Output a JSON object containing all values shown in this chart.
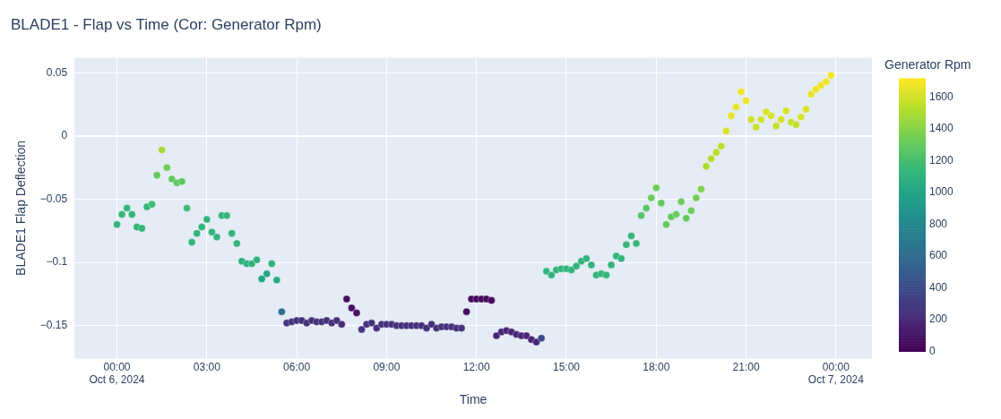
{
  "chart_data": {
    "type": "scatter",
    "title": "BLADE1 - Flap vs Time (Cor: Generator Rpm)",
    "xlabel": "Time",
    "ylabel": "BLADE1 Flap Deflection",
    "clabel": "Generator Rpm",
    "marker": "circle",
    "grid": true,
    "x": [
      "2024-10-06T00:00",
      "2024-10-06T00:10",
      "2024-10-06T00:20",
      "2024-10-06T00:30",
      "2024-10-06T00:40",
      "2024-10-06T00:50",
      "2024-10-06T01:00",
      "2024-10-06T01:10",
      "2024-10-06T01:20",
      "2024-10-06T01:30",
      "2024-10-06T01:40",
      "2024-10-06T01:50",
      "2024-10-06T02:00",
      "2024-10-06T02:10",
      "2024-10-06T02:20",
      "2024-10-06T02:30",
      "2024-10-06T02:40",
      "2024-10-06T02:50",
      "2024-10-06T03:00",
      "2024-10-06T03:10",
      "2024-10-06T03:20",
      "2024-10-06T03:30",
      "2024-10-06T03:40",
      "2024-10-06T03:50",
      "2024-10-06T04:00",
      "2024-10-06T04:10",
      "2024-10-06T04:20",
      "2024-10-06T04:30",
      "2024-10-06T04:40",
      "2024-10-06T04:50",
      "2024-10-06T05:00",
      "2024-10-06T05:10",
      "2024-10-06T05:20",
      "2024-10-06T05:30",
      "2024-10-06T05:40",
      "2024-10-06T05:50",
      "2024-10-06T06:00",
      "2024-10-06T06:10",
      "2024-10-06T06:20",
      "2024-10-06T06:30",
      "2024-10-06T06:40",
      "2024-10-06T06:50",
      "2024-10-06T07:00",
      "2024-10-06T07:10",
      "2024-10-06T07:20",
      "2024-10-06T07:30",
      "2024-10-06T07:40",
      "2024-10-06T07:50",
      "2024-10-06T08:00",
      "2024-10-06T08:10",
      "2024-10-06T08:20",
      "2024-10-06T08:30",
      "2024-10-06T08:40",
      "2024-10-06T08:50",
      "2024-10-06T09:00",
      "2024-10-06T09:10",
      "2024-10-06T09:20",
      "2024-10-06T09:30",
      "2024-10-06T09:40",
      "2024-10-06T09:50",
      "2024-10-06T10:00",
      "2024-10-06T10:10",
      "2024-10-06T10:20",
      "2024-10-06T10:30",
      "2024-10-06T10:40",
      "2024-10-06T10:50",
      "2024-10-06T11:00",
      "2024-10-06T11:10",
      "2024-10-06T11:20",
      "2024-10-06T11:30",
      "2024-10-06T11:40",
      "2024-10-06T11:50",
      "2024-10-06T12:00",
      "2024-10-06T12:10",
      "2024-10-06T12:20",
      "2024-10-06T12:30",
      "2024-10-06T12:40",
      "2024-10-06T12:50",
      "2024-10-06T13:00",
      "2024-10-06T13:10",
      "2024-10-06T13:20",
      "2024-10-06T13:30",
      "2024-10-06T13:40",
      "2024-10-06T13:50",
      "2024-10-06T14:00",
      "2024-10-06T14:10",
      "2024-10-06T14:20",
      "2024-10-06T14:30",
      "2024-10-06T14:40",
      "2024-10-06T14:50",
      "2024-10-06T15:00",
      "2024-10-06T15:10",
      "2024-10-06T15:20",
      "2024-10-06T15:30",
      "2024-10-06T15:40",
      "2024-10-06T15:50",
      "2024-10-06T16:00",
      "2024-10-06T16:10",
      "2024-10-06T16:20",
      "2024-10-06T16:30",
      "2024-10-06T16:40",
      "2024-10-06T16:50",
      "2024-10-06T17:00",
      "2024-10-06T17:10",
      "2024-10-06T17:20",
      "2024-10-06T17:30",
      "2024-10-06T17:40",
      "2024-10-06T17:50",
      "2024-10-06T18:00",
      "2024-10-06T18:10",
      "2024-10-06T18:20",
      "2024-10-06T18:30",
      "2024-10-06T18:40",
      "2024-10-06T18:50",
      "2024-10-06T19:00",
      "2024-10-06T19:10",
      "2024-10-06T19:20",
      "2024-10-06T19:30",
      "2024-10-06T19:40",
      "2024-10-06T19:50",
      "2024-10-06T20:00",
      "2024-10-06T20:10",
      "2024-10-06T20:20",
      "2024-10-06T20:30",
      "2024-10-06T20:40",
      "2024-10-06T20:50",
      "2024-10-06T21:00",
      "2024-10-06T21:10",
      "2024-10-06T21:20",
      "2024-10-06T21:30",
      "2024-10-06T21:40",
      "2024-10-06T21:50",
      "2024-10-06T22:00",
      "2024-10-06T22:10",
      "2024-10-06T22:20",
      "2024-10-06T22:30",
      "2024-10-06T22:40",
      "2024-10-06T22:50",
      "2024-10-06T23:00",
      "2024-10-06T23:10",
      "2024-10-06T23:20",
      "2024-10-06T23:30",
      "2024-10-06T23:40",
      "2024-10-06T23:50"
    ],
    "values": [
      -0.07,
      -0.062,
      -0.057,
      -0.062,
      -0.072,
      -0.073,
      -0.056,
      -0.054,
      -0.031,
      -0.011,
      -0.025,
      -0.034,
      -0.037,
      -0.036,
      -0.057,
      -0.084,
      -0.077,
      -0.072,
      -0.066,
      -0.076,
      -0.08,
      -0.063,
      -0.063,
      -0.077,
      -0.085,
      -0.099,
      -0.101,
      -0.101,
      -0.098,
      -0.113,
      -0.109,
      -0.101,
      -0.114,
      -0.139,
      -0.148,
      -0.147,
      -0.146,
      -0.146,
      -0.148,
      -0.146,
      -0.147,
      -0.147,
      -0.146,
      -0.148,
      -0.146,
      -0.149,
      -0.129,
      -0.136,
      -0.14,
      -0.153,
      -0.149,
      -0.148,
      -0.152,
      -0.149,
      -0.149,
      -0.149,
      -0.15,
      -0.15,
      -0.15,
      -0.15,
      -0.15,
      -0.15,
      -0.152,
      -0.149,
      -0.152,
      -0.151,
      -0.151,
      -0.151,
      -0.152,
      -0.152,
      -0.139,
      -0.129,
      -0.129,
      -0.129,
      -0.129,
      -0.13,
      -0.158,
      -0.155,
      -0.154,
      -0.155,
      -0.157,
      -0.158,
      -0.158,
      -0.161,
      -0.163,
      -0.16,
      -0.107,
      -0.11,
      -0.106,
      -0.105,
      -0.105,
      -0.106,
      -0.103,
      -0.099,
      -0.097,
      -0.102,
      -0.11,
      -0.109,
      -0.11,
      -0.102,
      -0.095,
      -0.097,
      -0.086,
      -0.079,
      -0.085,
      -0.063,
      -0.057,
      -0.049,
      -0.041,
      -0.053,
      -0.07,
      -0.064,
      -0.062,
      -0.052,
      -0.065,
      -0.059,
      -0.049,
      -0.042,
      -0.024,
      -0.018,
      -0.013,
      -0.008,
      0.004,
      0.016,
      0.023,
      0.035,
      0.028,
      0.013,
      0.007,
      0.013,
      0.019,
      0.016,
      0.008,
      0.013,
      0.02,
      0.011,
      0.009,
      0.015,
      0.021,
      0.033,
      0.037,
      0.04,
      0.043,
      0.048
    ],
    "cvalues": [
      1130,
      1150,
      1140,
      1140,
      1130,
      1130,
      1150,
      1170,
      1300,
      1480,
      1330,
      1300,
      1280,
      1280,
      1180,
      1120,
      1130,
      1130,
      1140,
      1120,
      1120,
      1140,
      1150,
      1120,
      1120,
      1100,
      1100,
      1100,
      1110,
      1000,
      1020,
      1100,
      1060,
      620,
      250,
      250,
      250,
      250,
      250,
      250,
      240,
      240,
      240,
      240,
      240,
      200,
      60,
      80,
      80,
      240,
      240,
      240,
      240,
      240,
      240,
      240,
      240,
      240,
      240,
      240,
      240,
      240,
      240,
      240,
      240,
      240,
      240,
      240,
      240,
      240,
      50,
      40,
      40,
      40,
      40,
      40,
      180,
      180,
      180,
      180,
      180,
      180,
      180,
      180,
      180,
      380,
      1120,
      1120,
      1120,
      1120,
      1120,
      1120,
      1120,
      1120,
      1120,
      1120,
      1120,
      1120,
      1120,
      1120,
      1120,
      1120,
      1150,
      1150,
      1150,
      1250,
      1260,
      1320,
      1340,
      1300,
      1300,
      1300,
      1320,
      1320,
      1300,
      1320,
      1350,
      1380,
      1500,
      1520,
      1530,
      1550,
      1620,
      1650,
      1660,
      1680,
      1670,
      1600,
      1580,
      1600,
      1620,
      1620,
      1570,
      1600,
      1620,
      1580,
      1570,
      1610,
      1630,
      1660,
      1670,
      1680,
      1680,
      1690
    ],
    "clim": [
      0,
      1720
    ],
    "cticks": [
      0,
      200,
      400,
      600,
      800,
      1000,
      1200,
      1400,
      1600
    ],
    "xlim": [
      "2024-10-05T22:35",
      "2024-10-07T01:12"
    ],
    "xticks": [
      {
        "value": "2024-10-06T00:00",
        "label": "00:00\nOct 6, 2024"
      },
      {
        "value": "2024-10-06T03:00",
        "label": "03:00"
      },
      {
        "value": "2024-10-06T06:00",
        "label": "06:00"
      },
      {
        "value": "2024-10-06T09:00",
        "label": "09:00"
      },
      {
        "value": "2024-10-06T12:00",
        "label": "12:00"
      },
      {
        "value": "2024-10-06T15:00",
        "label": "15:00"
      },
      {
        "value": "2024-10-06T18:00",
        "label": "18:00"
      },
      {
        "value": "2024-10-06T21:00",
        "label": "21:00"
      },
      {
        "value": "2024-10-07T00:00",
        "label": "00:00\nOct 7, 2024"
      }
    ],
    "ylim": [
      -0.176,
      0.062
    ],
    "yticks": [
      {
        "value": -0.15,
        "label": "−0.15"
      },
      {
        "value": -0.1,
        "label": "−0.1"
      },
      {
        "value": -0.05,
        "label": "−0.05"
      },
      0,
      0.05
    ]
  }
}
